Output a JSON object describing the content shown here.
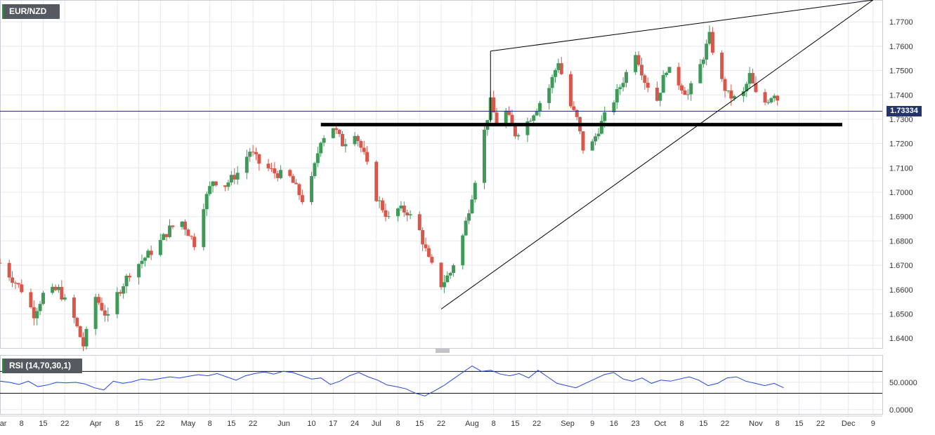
{
  "chart_data": [
    {
      "type": "candlestick",
      "symbol": "EUR/NZD",
      "ylim": [
        1.636,
        1.779
      ],
      "y_ticks": [
        "1.6400",
        "1.6500",
        "1.6600",
        "1.6700",
        "1.6800",
        "1.6900",
        "1.7000",
        "1.7100",
        "1.7200",
        "1.7300",
        "1.7400",
        "1.7500",
        "1.7600",
        "1.7700"
      ],
      "x_ticks": [
        "Mar",
        "8",
        "15",
        "22",
        "Apr",
        "8",
        "15",
        "22",
        "May",
        "8",
        "15",
        "22",
        "Jun",
        "10",
        "17",
        "24",
        "Jul",
        "8",
        "15",
        "22",
        "Aug",
        "8",
        "15",
        "22",
        "Sep",
        "9",
        "16",
        "23",
        "Oct",
        "8",
        "15",
        "22",
        "Nov",
        "8",
        "15",
        "22",
        "Dec",
        "9"
      ],
      "last_price": "1.73334",
      "horizontal_levels": [
        1.7333,
        1.7278
      ],
      "trendlines": [
        {
          "from": [
            "Aug 7",
            1.758
          ],
          "to": [
            "Dec 9",
            1.779
          ]
        },
        {
          "from": [
            "Jul 22",
            1.652
          ],
          "to": [
            "Dec 9",
            1.779
          ]
        },
        {
          "from": [
            "Aug 7",
            1.758
          ],
          "to": [
            "Aug 7",
            1.729
          ]
        }
      ],
      "close_path": [
        [
          "Mar 1",
          1.671
        ],
        [
          "Mar 4",
          1.666
        ],
        [
          "Mar 8",
          1.66
        ],
        [
          "Mar 12",
          1.65
        ],
        [
          "Mar 15",
          1.658
        ],
        [
          "Mar 20",
          1.66
        ],
        [
          "Mar 25",
          1.648
        ],
        [
          "Mar 28",
          1.637
        ],
        [
          "Apr 1",
          1.657
        ],
        [
          "Apr 5",
          1.648
        ],
        [
          "Apr 8",
          1.658
        ],
        [
          "Apr 12",
          1.667
        ],
        [
          "Apr 16",
          1.672
        ],
        [
          "Apr 21",
          1.678
        ],
        [
          "Apr 25",
          1.685
        ],
        [
          "Apr 29",
          1.688
        ],
        [
          "May 3",
          1.679
        ],
        [
          "May 6",
          1.695
        ],
        [
          "May 9",
          1.705
        ],
        [
          "May 13",
          1.703
        ],
        [
          "May 17",
          1.708
        ],
        [
          "May 21",
          1.717
        ],
        [
          "May 24",
          1.712
        ],
        [
          "May 29",
          1.708
        ],
        [
          "Jun 3",
          1.706
        ],
        [
          "Jun 7",
          1.697
        ],
        [
          "Jun 10",
          1.705
        ],
        [
          "Jun 13",
          1.722
        ],
        [
          "Jun 17",
          1.727
        ],
        [
          "Jun 20",
          1.72
        ],
        [
          "Jun 24",
          1.725
        ],
        [
          "Jun 27",
          1.715
        ],
        [
          "Jul 1",
          1.698
        ],
        [
          "Jul 5",
          1.689
        ],
        [
          "Jul 8",
          1.693
        ],
        [
          "Jul 11",
          1.692
        ],
        [
          "Jul 15",
          1.684
        ],
        [
          "Jul 18",
          1.672
        ],
        [
          "Jul 22",
          1.662
        ],
        [
          "Jul 25",
          1.667
        ],
        [
          "Jul 29",
          1.682
        ],
        [
          "Aug 1",
          1.699
        ],
        [
          "Aug 5",
          1.725
        ],
        [
          "Aug 7",
          1.737
        ],
        [
          "Aug 9",
          1.728
        ],
        [
          "Aug 12",
          1.733
        ],
        [
          "Aug 15",
          1.724
        ],
        [
          "Aug 19",
          1.729
        ],
        [
          "Aug 22",
          1.735
        ],
        [
          "Aug 26",
          1.743
        ],
        [
          "Aug 29",
          1.754
        ],
        [
          "Sep 1",
          1.738
        ],
        [
          "Sep 4",
          1.73
        ],
        [
          "Sep 6",
          1.718
        ],
        [
          "Sep 9",
          1.72
        ],
        [
          "Sep 11",
          1.726
        ],
        [
          "Sep 13",
          1.731
        ],
        [
          "Sep 16",
          1.738
        ],
        [
          "Sep 20",
          1.749
        ],
        [
          "Sep 23",
          1.758
        ],
        [
          "Sep 26",
          1.746
        ],
        [
          "Sep 30",
          1.738
        ],
        [
          "Oct 3",
          1.751
        ],
        [
          "Oct 7",
          1.745
        ],
        [
          "Oct 10",
          1.74
        ],
        [
          "Oct 14",
          1.752
        ],
        [
          "Oct 17",
          1.764
        ],
        [
          "Oct 20",
          1.748
        ],
        [
          "Oct 23",
          1.74
        ],
        [
          "Oct 27",
          1.737
        ],
        [
          "Oct 30",
          1.748
        ],
        [
          "Nov 1",
          1.74
        ],
        [
          "Nov 4",
          1.737
        ],
        [
          "Nov 7",
          1.741
        ],
        [
          "Nov 10",
          1.733
        ]
      ]
    },
    {
      "type": "line",
      "indicator": "RSI (14,70,30,1)",
      "ylim": [
        -8,
        100
      ],
      "y_ticks": [
        "0.0000",
        "50.0000"
      ],
      "reference_levels": [
        70,
        30
      ],
      "series": [
        {
          "values": [
            52,
            50,
            46,
            52,
            42,
            45,
            50,
            49,
            50,
            47,
            40,
            36,
            52,
            48,
            51,
            56,
            54,
            57,
            60,
            58,
            61,
            64,
            62,
            66,
            60,
            54,
            62,
            66,
            69,
            65,
            70,
            68,
            62,
            56,
            58,
            46,
            52,
            62,
            68,
            60,
            54,
            45,
            42,
            38,
            30,
            25,
            34,
            44,
            56,
            68,
            80,
            70,
            72,
            65,
            62,
            66,
            58,
            72,
            60,
            48,
            44,
            40,
            48,
            56,
            64,
            68,
            56,
            52,
            58,
            48,
            54,
            52,
            56,
            60,
            54,
            44,
            48,
            58,
            60,
            52,
            48,
            44,
            48,
            40
          ]
        }
      ]
    }
  ]
}
